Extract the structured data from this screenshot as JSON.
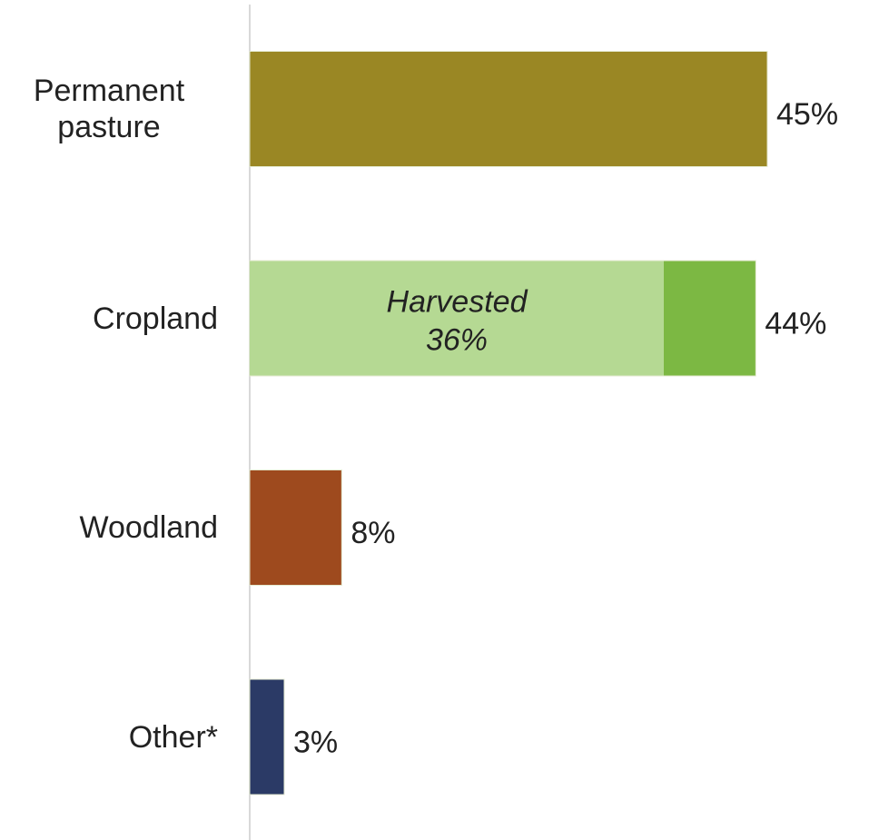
{
  "chart_data": {
    "type": "bar",
    "orientation": "horizontal",
    "categories": [
      "Permanent pasture",
      "Cropland",
      "Woodland",
      "Other*"
    ],
    "values": [
      45,
      44,
      8,
      3
    ],
    "value_labels": [
      "45%",
      "44%",
      "8%",
      "3%"
    ],
    "colors": [
      "#9a8724",
      "#7cb843",
      "#9e4a1e",
      "#2b3a66"
    ],
    "inner_segments": [
      null,
      {
        "label": "Harvested",
        "value": 36,
        "value_label": "36%",
        "color": "#b5d993"
      },
      null,
      null
    ],
    "xlim": [
      0,
      45
    ]
  }
}
